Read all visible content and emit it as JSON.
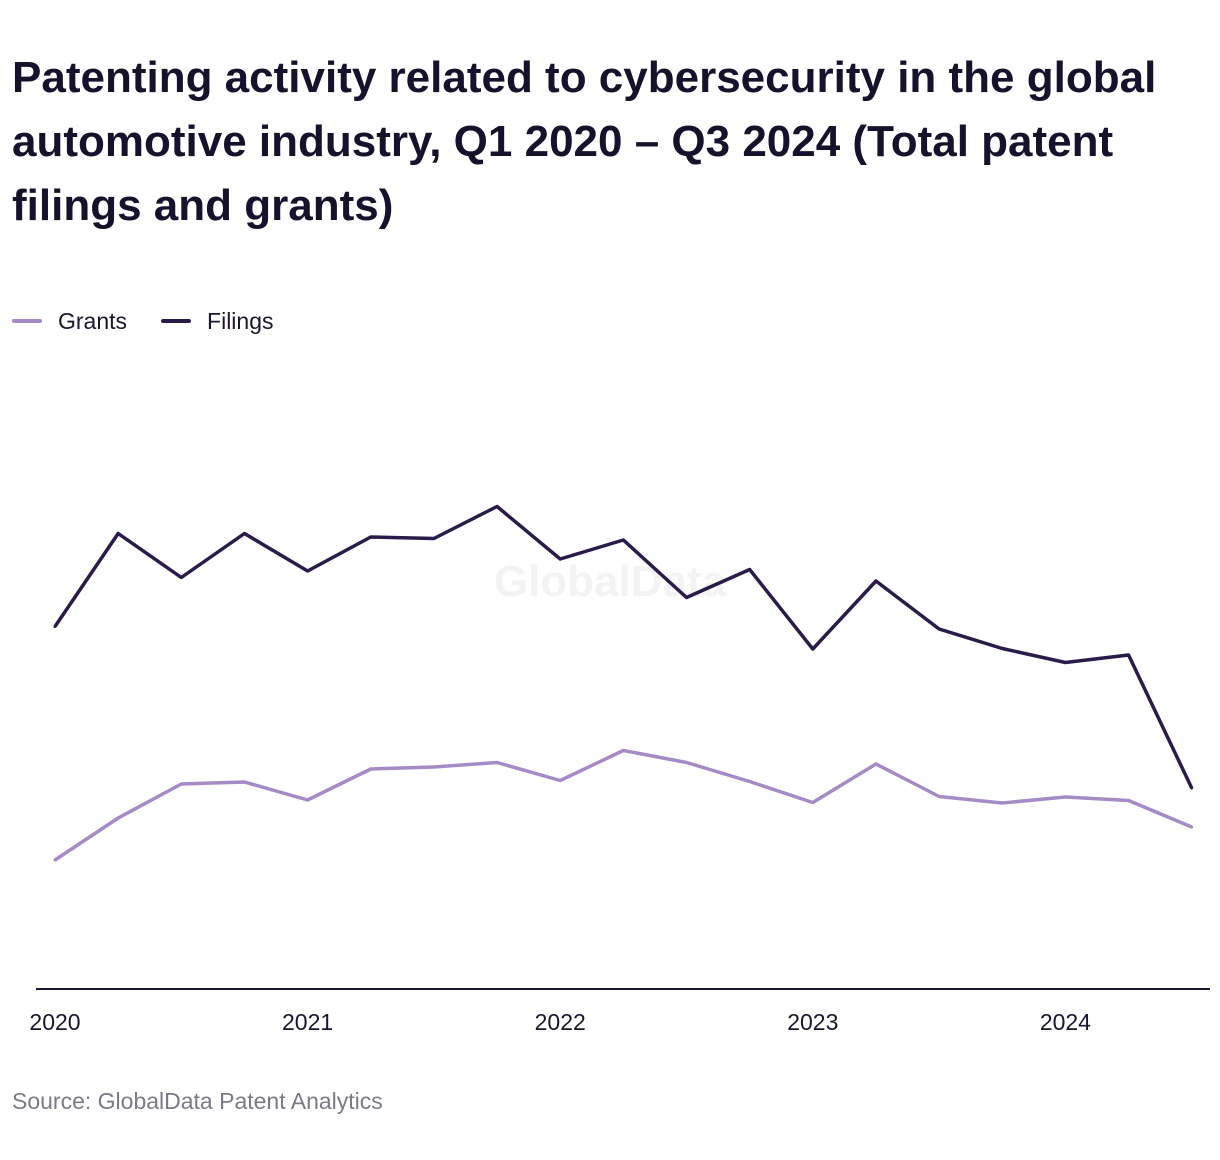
{
  "title": "Patenting activity related to cybersecurity in the global automotive industry, Q1 2020 – Q3 2024 (Total patent filings and grants)",
  "source": "Source: GlobalData Patent Analytics",
  "watermark": "GlobalData",
  "legend_position": "top-left",
  "colors": {
    "Grants": "#a58bc6",
    "Filings": "#2a1b4a",
    "axis": "#1b1530",
    "watermark": "#f3f3f5"
  },
  "chart_data": {
    "type": "line",
    "x": [
      "Q1 2020",
      "Q2 2020",
      "Q3 2020",
      "Q4 2020",
      "Q1 2021",
      "Q2 2021",
      "Q3 2021",
      "Q4 2021",
      "Q1 2022",
      "Q2 2022",
      "Q3 2022",
      "Q4 2022",
      "Q1 2023",
      "Q2 2023",
      "Q3 2023",
      "Q4 2023",
      "Q1 2024",
      "Q2 2024",
      "Q3 2024"
    ],
    "x_ticks": [
      "2020",
      "2021",
      "2022",
      "2023",
      "2024"
    ],
    "series": [
      {
        "name": "Grants",
        "values": [
          258,
          342,
          410,
          414,
          378,
          440,
          444,
          453,
          417,
          477,
          453,
          415,
          373,
          450,
          385,
          372,
          384,
          377,
          324
        ]
      },
      {
        "name": "Filings",
        "values": [
          725,
          911,
          823,
          911,
          836,
          904,
          901,
          965,
          860,
          898,
          783,
          839,
          680,
          816,
          720,
          681,
          653,
          668,
          402
        ]
      }
    ],
    "ylim": [
      0,
      1200
    ],
    "grid": false,
    "title": "Patenting activity related to cybersecurity in the global automotive industry, Q1 2020 – Q3 2024 (Total patent filings and grants)",
    "xlabel": "",
    "ylabel": ""
  }
}
